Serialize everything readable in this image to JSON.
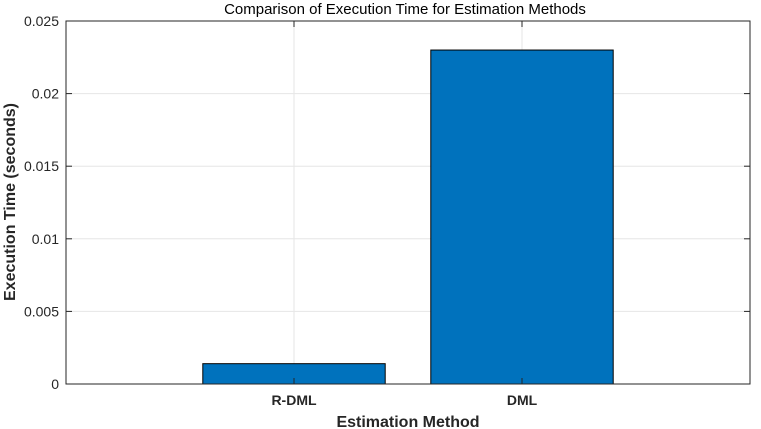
{
  "chart_data": {
    "type": "bar",
    "title": "Comparison of Execution Time for Estimation Methods",
    "xlabel": "Estimation Method",
    "ylabel": "Execution Time (seconds)",
    "categories": [
      "R-DML",
      "DML"
    ],
    "values": [
      0.0014,
      0.023
    ],
    "ylim": [
      0,
      0.025
    ],
    "yticks": [
      "0",
      "0.005",
      "0.01",
      "0.015",
      "0.02",
      "0.025"
    ],
    "grid": true,
    "bar_color": "#0072BD"
  }
}
